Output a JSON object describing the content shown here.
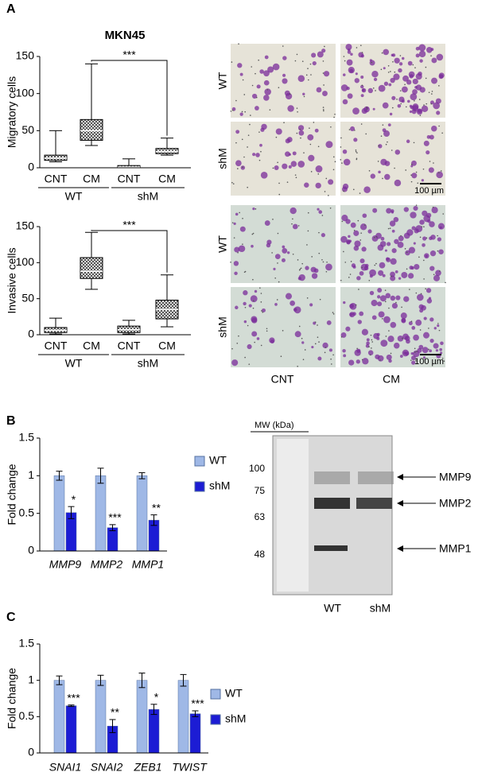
{
  "panel_labels": [
    "A",
    "B",
    "C"
  ],
  "chart_data": [
    {
      "type": "box",
      "title": "MKN45",
      "y_label": "Migratory cells",
      "categories": [
        "CNT",
        "CM",
        "CNT",
        "CM"
      ],
      "groups": [
        "WT",
        "shM"
      ],
      "boxes": [
        {
          "min": 8,
          "q1": 10,
          "median": 13,
          "q3": 17,
          "max": 50
        },
        {
          "min": 30,
          "q1": 37,
          "median": 50,
          "q3": 65,
          "max": 140
        },
        {
          "min": 0,
          "q1": 0,
          "median": 1,
          "q3": 3,
          "max": 12
        },
        {
          "min": 17,
          "q1": 19,
          "median": 22,
          "q3": 26,
          "max": 40
        }
      ],
      "ylim": [
        0,
        150
      ],
      "yticks": [
        0,
        50,
        100,
        150
      ],
      "annotation": "***"
    },
    {
      "type": "box",
      "y_label": "Invasive cells",
      "categories": [
        "CNT",
        "CM",
        "CNT",
        "CM"
      ],
      "groups": [
        "WT",
        "shM"
      ],
      "boxes": [
        {
          "min": 1,
          "q1": 3,
          "median": 6,
          "q3": 10,
          "max": 23
        },
        {
          "min": 63,
          "q1": 78,
          "median": 88,
          "q3": 107,
          "max": 142
        },
        {
          "min": 1,
          "q1": 3,
          "median": 7,
          "q3": 12,
          "max": 20
        },
        {
          "min": 11,
          "q1": 22,
          "median": 35,
          "q3": 48,
          "max": 83
        }
      ],
      "ylim": [
        0,
        150
      ],
      "yticks": [
        0,
        50,
        100,
        150
      ],
      "annotation": "***"
    },
    {
      "type": "bar",
      "y_label": "Fold change",
      "categories": [
        "MMP9",
        "MMP2",
        "MMP1"
      ],
      "series": [
        {
          "name": "WT",
          "color": "#9fb8e6",
          "values": [
            1,
            1,
            1
          ],
          "errors": [
            0.06,
            0.1,
            0.04
          ]
        },
        {
          "name": "shM",
          "color": "#1c1cd4",
          "values": [
            0.51,
            0.31,
            0.41
          ],
          "errors": [
            0.08,
            0.04,
            0.07
          ],
          "significance": [
            "*",
            "***",
            "**"
          ]
        }
      ],
      "ylim": [
        0,
        1.5
      ],
      "yticks": [
        0,
        0.5,
        1,
        1.5
      ],
      "legend": "right"
    },
    {
      "type": "bar",
      "y_label": "Fold change",
      "categories": [
        "SNAI1",
        "SNAI2",
        "ZEB1",
        "TWIST"
      ],
      "series": [
        {
          "name": "WT",
          "color": "#9fb8e6",
          "values": [
            1,
            1,
            1,
            1
          ],
          "errors": [
            0.06,
            0.07,
            0.1,
            0.08
          ]
        },
        {
          "name": "shM",
          "color": "#1c1cd4",
          "values": [
            0.65,
            0.37,
            0.6,
            0.54
          ],
          "errors": [
            0.01,
            0.09,
            0.07,
            0.04
          ],
          "significance": [
            "***",
            "**",
            "*",
            "***"
          ]
        }
      ],
      "ylim": [
        0,
        1.5
      ],
      "yticks": [
        0,
        0.5,
        1,
        1.5
      ],
      "legend": "right"
    }
  ],
  "micrographs": {
    "row_labels": [
      "WT",
      "shM",
      "WT",
      "shM"
    ],
    "column_labels": [
      "CNT",
      "CM"
    ],
    "scale_bar": "100 µm"
  },
  "western_blot": {
    "mw_label": "MW (kDa)",
    "markers": [
      "100",
      "75",
      "63",
      "48"
    ],
    "bands": [
      "MMP9",
      "MMP2",
      "MMP1"
    ],
    "lanes": [
      "WT",
      "shM"
    ]
  }
}
